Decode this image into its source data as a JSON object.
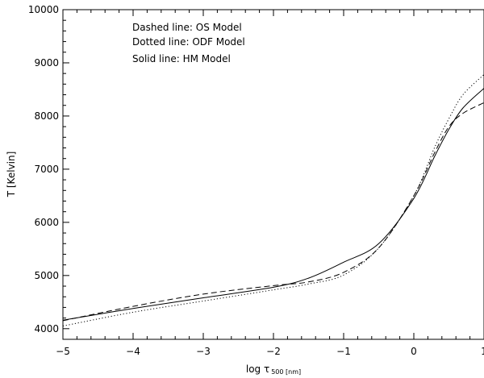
{
  "chart_data": {
    "type": "line",
    "xlabel": "log τ",
    "xlabel_sub": "500 [nm]",
    "ylabel": "T [Kelvin]",
    "xlim": [
      -5,
      1
    ],
    "ylim": [
      3800,
      10000
    ],
    "x_ticks": [
      -5,
      -4,
      -3,
      -2,
      -1,
      0,
      1
    ],
    "y_ticks": [
      4000,
      5000,
      6000,
      7000,
      8000,
      9000,
      10000
    ],
    "x_tick_labels": [
      "−5",
      "−4",
      "−3",
      "−2",
      "−1",
      "0",
      "1"
    ],
    "y_tick_labels": [
      "4000",
      "5000",
      "6000",
      "7000",
      "8000",
      "9000",
      "10000"
    ],
    "annotations": [
      "Dashed line: OS Model",
      "Dotted line: ODF Model",
      "Solid line: HM Model"
    ],
    "grid": false,
    "series": [
      {
        "name": "OS Model",
        "style": "dashed",
        "x": [
          -5,
          -4,
          -3,
          -2,
          -1.5,
          -1,
          -0.5,
          0,
          0.3,
          0.5,
          0.7,
          1
        ],
        "y": [
          4150,
          4420,
          4650,
          4810,
          4880,
          5060,
          5520,
          6500,
          7320,
          7800,
          8050,
          8250
        ]
      },
      {
        "name": "ODF Model",
        "style": "dotted",
        "x": [
          -5,
          -4,
          -3,
          -2,
          -1.5,
          -1,
          -0.5,
          0,
          0.3,
          0.5,
          0.7,
          1
        ],
        "y": [
          4050,
          4310,
          4520,
          4730,
          4840,
          5010,
          5520,
          6500,
          7420,
          7950,
          8400,
          8780
        ]
      },
      {
        "name": "HM Model",
        "style": "solid",
        "x": [
          -5,
          -4,
          -3,
          -2,
          -1.5,
          -1,
          -0.5,
          0,
          0.3,
          0.5,
          0.7,
          1
        ],
        "y": [
          4160,
          4380,
          4580,
          4780,
          4950,
          5250,
          5600,
          6450,
          7250,
          7750,
          8150,
          8520
        ]
      }
    ]
  }
}
